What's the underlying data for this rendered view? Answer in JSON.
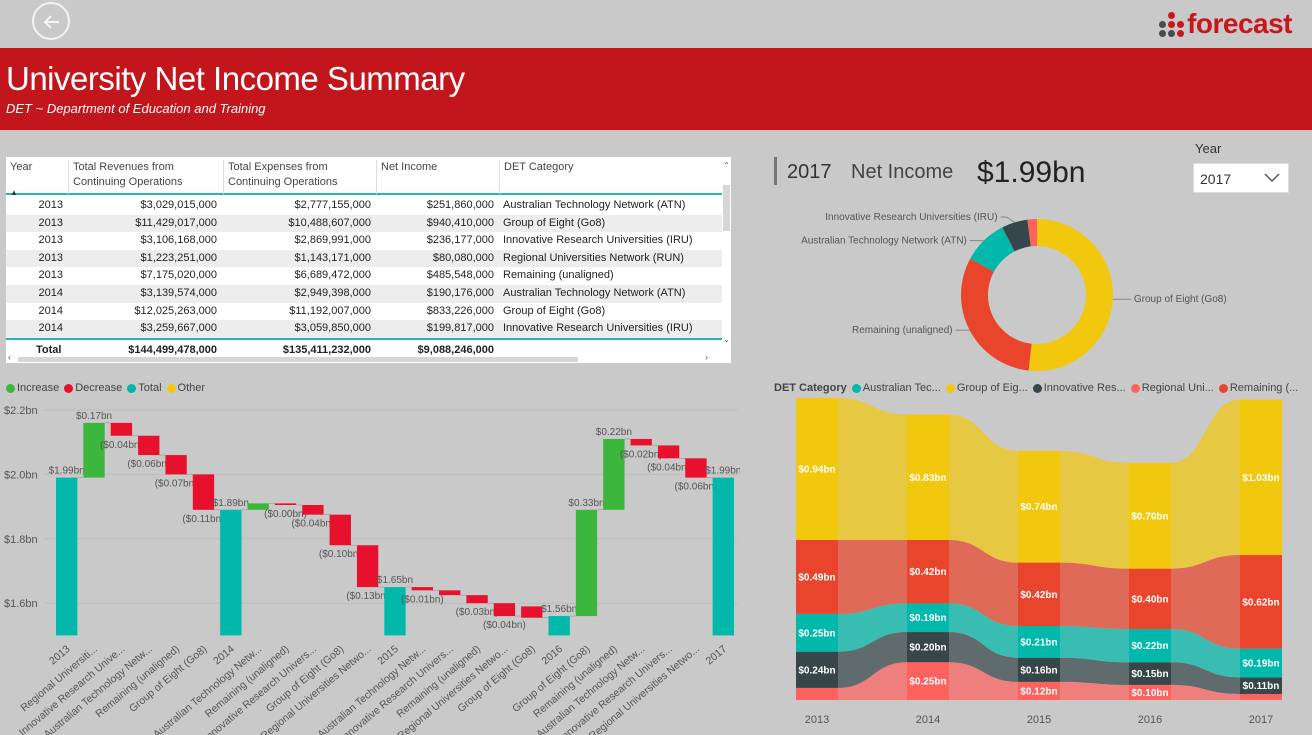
{
  "header": {
    "logo_text": "forecast",
    "title": "University Net Income Summary",
    "subtitle": "DET ~ Department of Education and Training"
  },
  "table": {
    "columns": [
      "Year",
      "Total Revenues from Continuing Operations",
      "Total Expenses from Continuing Operations",
      "Net Income",
      "DET Category"
    ],
    "rows": [
      [
        "2013",
        "$3,029,015,000",
        "$2,777,155,000",
        "$251,860,000",
        "Australian Technology Network (ATN)"
      ],
      [
        "2013",
        "$11,429,017,000",
        "$10,488,607,000",
        "$940,410,000",
        "Group of Eight (Go8)"
      ],
      [
        "2013",
        "$3,106,168,000",
        "$2,869,991,000",
        "$236,177,000",
        "Innovative Research Universities (IRU)"
      ],
      [
        "2013",
        "$1,223,251,000",
        "$1,143,171,000",
        "$80,080,000",
        "Regional Universities Network (RUN)"
      ],
      [
        "2013",
        "$7,175,020,000",
        "$6,689,472,000",
        "$485,548,000",
        "Remaining (unaligned)"
      ],
      [
        "2014",
        "$3,139,574,000",
        "$2,949,398,000",
        "$190,176,000",
        "Australian Technology Network (ATN)"
      ],
      [
        "2014",
        "$12,025,263,000",
        "$11,192,007,000",
        "$833,226,000",
        "Group of Eight (Go8)"
      ],
      [
        "2014",
        "$3,259,667,000",
        "$3,059,850,000",
        "$199,817,000",
        "Innovative Research Universities (IRU)"
      ]
    ],
    "total": [
      "Total",
      "$144,499,478,000",
      "$135,411,232,000",
      "$9,088,246,000",
      ""
    ]
  },
  "kpi": {
    "year": "2017",
    "label": "Net Income",
    "value": "$1.99bn"
  },
  "year_filter": {
    "label": "Year",
    "selected": "2017"
  },
  "colors": {
    "accent_red": "#c2151c",
    "teal": "#01b8aa",
    "yellow": "#f2c80f",
    "dark": "#374649",
    "salmon": "#fd625e",
    "orange_red": "#e9452c",
    "increase": "#3cb63c",
    "decrease": "#e8112d"
  },
  "waterfall_legend": [
    {
      "label": "Increase",
      "color": "#3cb63c"
    },
    {
      "label": "Decrease",
      "color": "#e8112d"
    },
    {
      "label": "Total",
      "color": "#01b8aa"
    },
    {
      "label": "Other",
      "color": "#f2c80f"
    }
  ],
  "ribbon_legend": {
    "title": "DET Category",
    "items": [
      {
        "label": "Australian Tec...",
        "color": "#01b8aa"
      },
      {
        "label": "Group of Eig...",
        "color": "#f2c80f"
      },
      {
        "label": "Innovative Res...",
        "color": "#374649"
      },
      {
        "label": "Regional Uni...",
        "color": "#fd625e"
      },
      {
        "label": "Remaining (...",
        "color": "#e9452c"
      }
    ]
  },
  "chart_data": [
    {
      "type": "pie",
      "subtype": "donut",
      "slices": [
        {
          "label": "Group of Eight (Go8)",
          "value": 1.03,
          "color": "#f2c80f"
        },
        {
          "label": "Remaining (unaligned)",
          "value": 0.62,
          "color": "#e9452c"
        },
        {
          "label": "Australian Technology Network (ATN)",
          "value": 0.19,
          "color": "#01b8aa"
        },
        {
          "label": "Innovative Research Universities (IRU)",
          "value": 0.11,
          "color": "#374649"
        },
        {
          "label": "",
          "value": 0.04,
          "color": "#fd625e"
        }
      ]
    },
    {
      "type": "bar",
      "subtype": "waterfall",
      "ylim": [
        1.5,
        2.2
      ],
      "yticks": [
        "$1.6bn",
        "$1.8bn",
        "$2.0bn",
        "$2.2bn"
      ],
      "ytick_values": [
        1.6,
        1.8,
        2.0,
        2.2
      ],
      "steps": [
        {
          "category": "2013",
          "kind": "total",
          "start": 1.5,
          "end": 1.99,
          "label": "$1.99bn"
        },
        {
          "category": "Regional Universiti...",
          "kind": "increase",
          "start": 1.99,
          "end": 2.16,
          "label": "$0.17bn"
        },
        {
          "category": "Innovative Research Unive...",
          "kind": "decrease",
          "start": 2.16,
          "end": 2.12,
          "label": "($0.04bn)"
        },
        {
          "category": "Australian Technology Netw...",
          "kind": "decrease",
          "start": 2.12,
          "end": 2.06,
          "label": "($0.06bn)"
        },
        {
          "category": "Remaining (unaligned)",
          "kind": "decrease",
          "start": 2.06,
          "end": 2.0,
          "label": "($0.07bn)"
        },
        {
          "category": "Group of Eight (Go8)",
          "kind": "decrease",
          "start": 2.0,
          "end": 1.89,
          "label": "($0.11bn)"
        },
        {
          "category": "2014",
          "kind": "total",
          "start": 1.5,
          "end": 1.89,
          "label": "$1.89bn"
        },
        {
          "category": "Australian Technology Netw...",
          "kind": "increase",
          "start": 1.89,
          "end": 1.91,
          "label": ""
        },
        {
          "category": "Remaining (unaligned)",
          "kind": "decrease",
          "start": 1.91,
          "end": 1.905,
          "label": "($0.00bn)"
        },
        {
          "category": "Innovative Research Univers...",
          "kind": "decrease",
          "start": 1.905,
          "end": 1.875,
          "label": "($0.04bn)"
        },
        {
          "category": "Group of Eight (Go8)",
          "kind": "decrease",
          "start": 1.875,
          "end": 1.78,
          "label": "($0.10bn)"
        },
        {
          "category": "Regional Universities Netwo...",
          "kind": "decrease",
          "start": 1.78,
          "end": 1.65,
          "label": "($0.13bn)"
        },
        {
          "category": "2015",
          "kind": "total",
          "start": 1.5,
          "end": 1.65,
          "label": "$1.65bn"
        },
        {
          "category": "Australian Technology Netw...",
          "kind": "decrease",
          "start": 1.65,
          "end": 1.64,
          "label": "($0.01bn)"
        },
        {
          "category": "Innovative Research Univers...",
          "kind": "decrease",
          "start": 1.64,
          "end": 1.625,
          "label": ""
        },
        {
          "category": "Remaining (unaligned)",
          "kind": "decrease",
          "start": 1.625,
          "end": 1.6,
          "label": "($0.03bn)"
        },
        {
          "category": "Regional Universities Netwo...",
          "kind": "decrease",
          "start": 1.6,
          "end": 1.56,
          "label": "($0.04bn)"
        },
        {
          "category": "Group of Eight (Go8)",
          "kind": "decrease",
          "start": 1.59,
          "end": 1.555,
          "label": ""
        },
        {
          "category": "2016",
          "kind": "total",
          "start": 1.5,
          "end": 1.56,
          "label": "$1.56bn"
        },
        {
          "category": "Group of Eight (Go8)",
          "kind": "increase",
          "start": 1.56,
          "end": 1.89,
          "label": "$0.33bn"
        },
        {
          "category": "Remaining (unaligned)",
          "kind": "increase",
          "start": 1.89,
          "end": 2.11,
          "label": "$0.22bn"
        },
        {
          "category": "Australian Technology Netw...",
          "kind": "decrease",
          "start": 2.11,
          "end": 2.09,
          "label": "($0.02bn)"
        },
        {
          "category": "Innovative Research Univers...",
          "kind": "decrease",
          "start": 2.09,
          "end": 2.05,
          "label": "($0.04bn)"
        },
        {
          "category": "Regional Universities Netwo...",
          "kind": "decrease",
          "start": 2.05,
          "end": 1.99,
          "label": "($0.06bn)"
        },
        {
          "category": "2017",
          "kind": "total",
          "start": 1.5,
          "end": 1.99,
          "label": "$1.99bn"
        }
      ]
    },
    {
      "type": "area",
      "subtype": "ribbon",
      "categories": [
        "2013",
        "2014",
        "2015",
        "2016",
        "2017"
      ],
      "series": [
        {
          "name": "Regional Universities Network (RUN)",
          "color": "#fd625e",
          "values": [
            0.08,
            0.25,
            0.12,
            0.1,
            0.04
          ],
          "labels": [
            "",
            "$0.25bn",
            "$0.12bn",
            "$0.10bn",
            ""
          ]
        },
        {
          "name": "Innovative Research Universities (IRU)",
          "color": "#374649",
          "values": [
            0.24,
            0.2,
            0.16,
            0.15,
            0.11
          ],
          "labels": [
            "$0.24bn",
            "$0.20bn",
            "$0.16bn",
            "$0.15bn",
            "$0.11bn"
          ]
        },
        {
          "name": "Australian Technology Network (ATN)",
          "color": "#01b8aa",
          "values": [
            0.25,
            0.19,
            0.21,
            0.22,
            0.19
          ],
          "labels": [
            "$0.25bn",
            "$0.19bn",
            "$0.21bn",
            "$0.22bn",
            "$0.19bn"
          ]
        },
        {
          "name": "Remaining (unaligned)",
          "color": "#e9452c",
          "values": [
            0.49,
            0.42,
            0.42,
            0.4,
            0.62
          ],
          "labels": [
            "$0.49bn",
            "$0.42bn",
            "$0.42bn",
            "$0.40bn",
            "$0.62bn"
          ]
        },
        {
          "name": "Group of Eight (Go8)",
          "color": "#f2c80f",
          "values": [
            0.94,
            0.83,
            0.74,
            0.7,
            1.03
          ],
          "labels": [
            "$0.94bn",
            "$0.83bn",
            "$0.74bn",
            "$0.70bn",
            "$1.03bn"
          ]
        }
      ]
    }
  ]
}
